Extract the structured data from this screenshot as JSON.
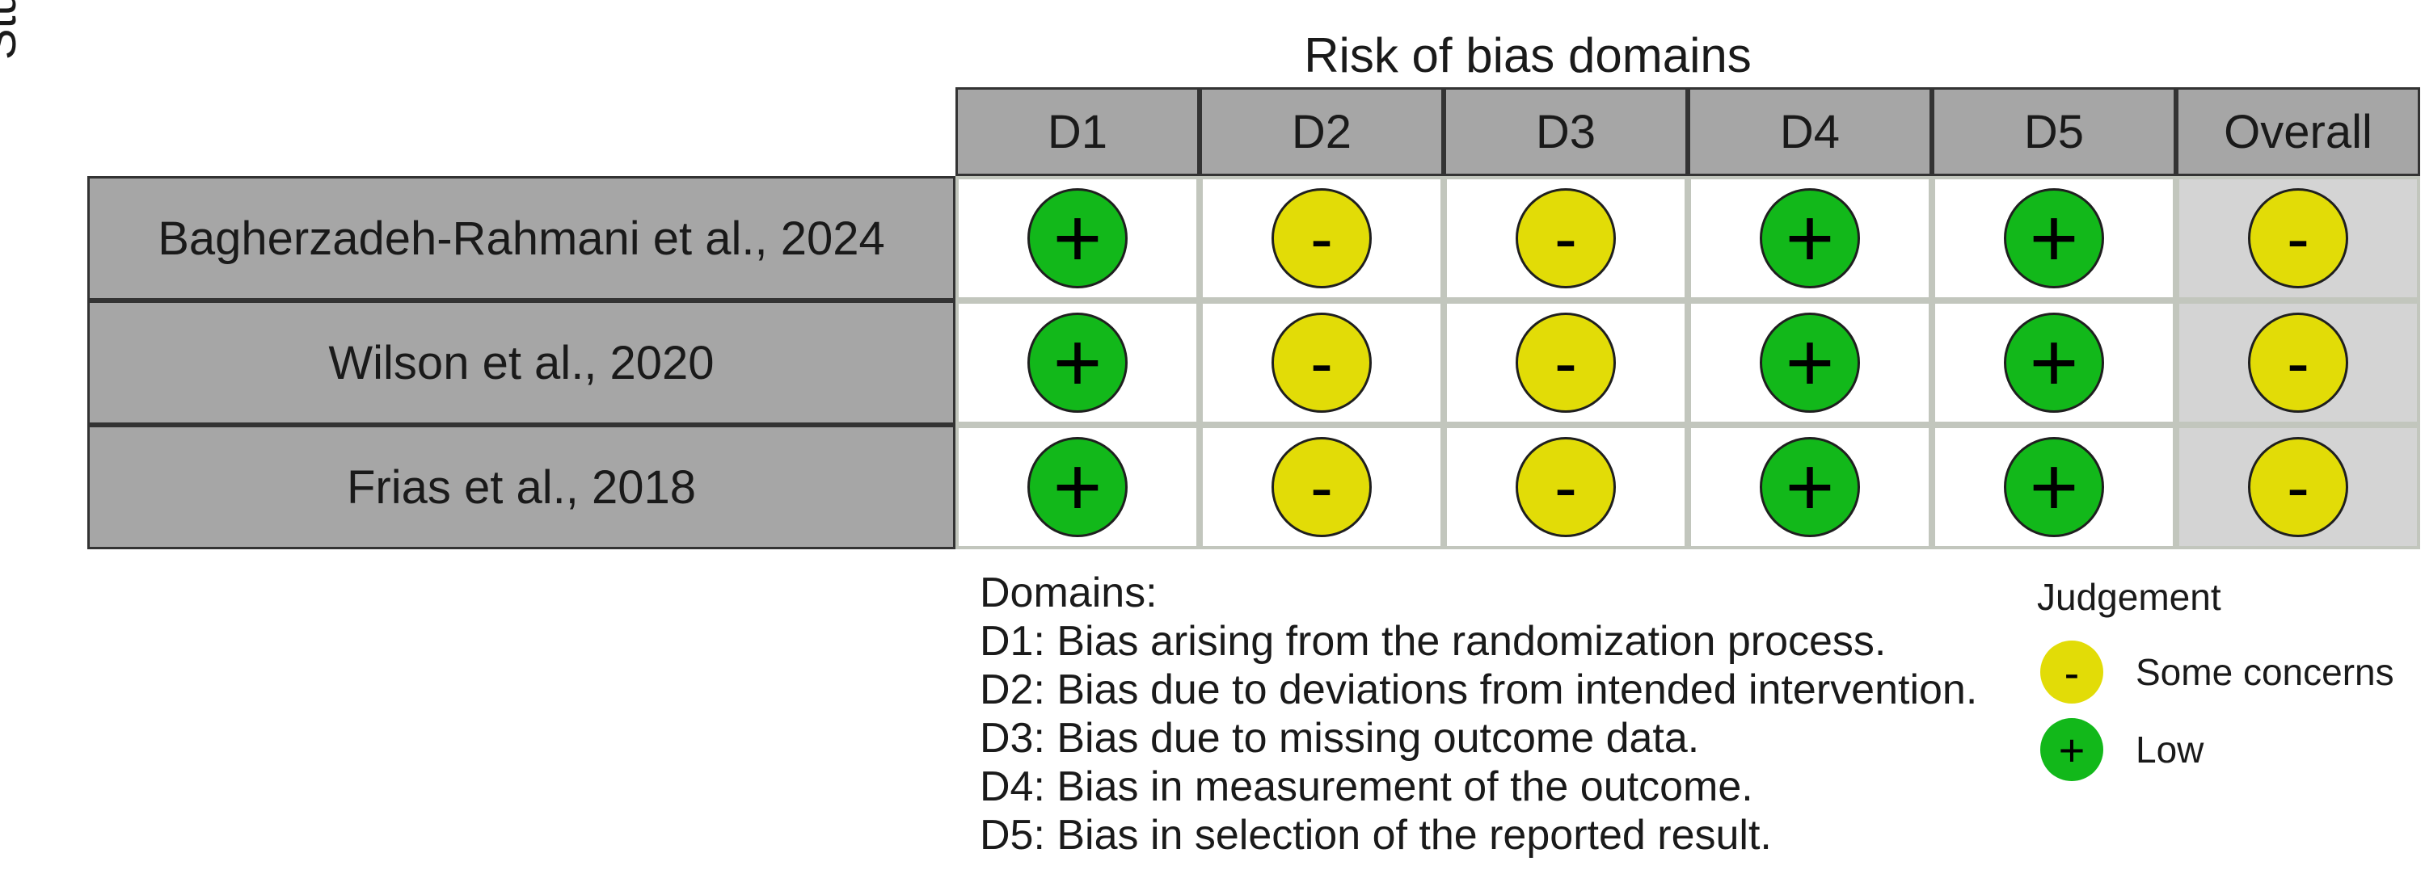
{
  "chart_data": {
    "type": "table",
    "title": "Risk of bias domains",
    "ylabel": "Study",
    "columns": [
      "D1",
      "D2",
      "D3",
      "D4",
      "D5",
      "Overall"
    ],
    "studies": [
      {
        "name": "Bagherzadeh-Rahmani et al., 2024",
        "judgements": [
          "+",
          "-",
          "-",
          "+",
          "+",
          "-"
        ]
      },
      {
        "name": "Wilson et al., 2020",
        "judgements": [
          "+",
          "-",
          "-",
          "+",
          "+",
          "-"
        ]
      },
      {
        "name": "Frias et al., 2018",
        "judgements": [
          "+",
          "-",
          "-",
          "+",
          "+",
          "-"
        ]
      }
    ],
    "domains_legend": {
      "heading": "Domains:",
      "items": [
        "D1: Bias arising from the randomization process.",
        "D2: Bias due to deviations from intended intervention.",
        "D3: Bias due to missing outcome data.",
        "D4: Bias in measurement of the outcome.",
        "D5: Bias in selection of the reported result."
      ]
    },
    "judgement_legend": {
      "heading": "Judgement",
      "items": [
        {
          "symbol": "-",
          "label": "Some concerns",
          "color": "#e2dc07"
        },
        {
          "symbol": "+",
          "label": "Low",
          "color": "#12b81a"
        }
      ]
    },
    "colors": {
      "low": "#12b81a",
      "some_concerns": "#e2dc07",
      "header": "#a6a6a6",
      "overall_cell": "#d4d4d4"
    }
  }
}
